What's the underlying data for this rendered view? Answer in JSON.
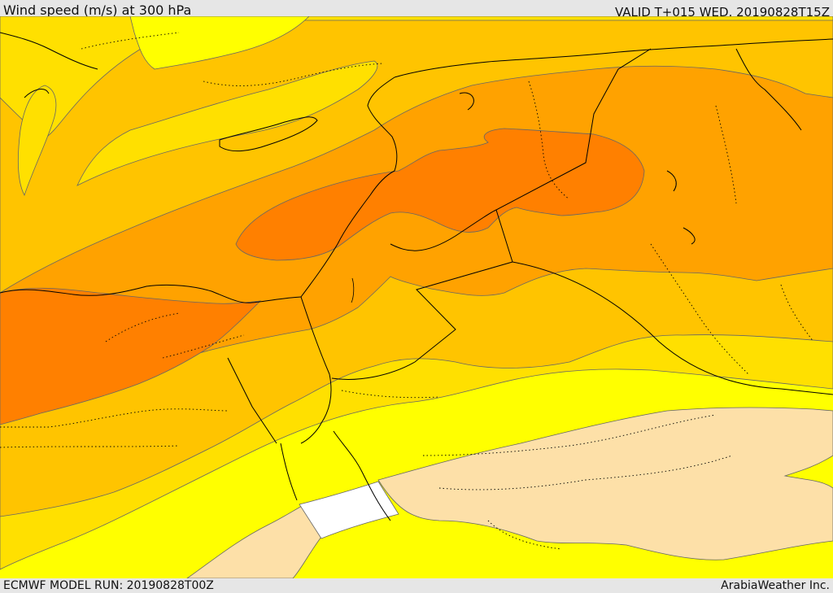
{
  "header": {
    "title": "Wind speed (m/s) at 300 hPa",
    "valid": "VALID T+015 WED. 20190828T15Z"
  },
  "footer": {
    "model_run": "ECMWF MODEL RUN: 20190828T00Z",
    "credit": "ArabiaWeather Inc."
  },
  "colors": {
    "band_0": "#ffffff",
    "band_1": "#fde0a8",
    "band_2": "#ffff00",
    "band_3": "#ffe000",
    "band_4": "#ffc400",
    "band_5": "#ffa200",
    "band_6": "#ff8000",
    "contour": "#666666",
    "coast": "#000000",
    "background": "#e6e6e6"
  }
}
